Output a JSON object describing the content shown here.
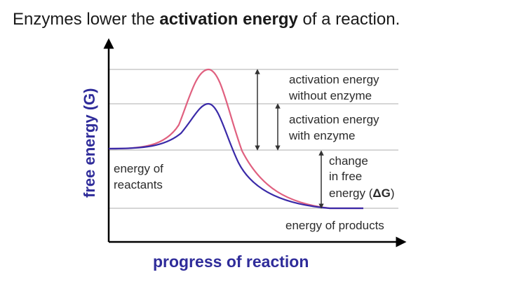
{
  "title": {
    "prefix": "Enzymes lower the ",
    "bold": "activation energy",
    "suffix": " of a reaction."
  },
  "diagram": {
    "y_axis_label": "free energy (G)",
    "x_axis_label": "progress of reaction",
    "reactants_label": [
      "energy of",
      "reactants"
    ],
    "products_label": "energy of products",
    "without_enzyme_label": [
      "activation energy",
      "without enzyme"
    ],
    "with_enzyme_label": [
      "activation energy",
      "with enzyme"
    ],
    "delta_g_label": [
      "change",
      "in free",
      "energy (",
      "ΔG",
      ")"
    ],
    "colors": {
      "axis_label": "#2f2c9a",
      "without_enzyme_curve": "#e0607f",
      "with_enzyme_curve": "#3a2aa8",
      "guide_lines": "#c8c8c8",
      "axes": "#000000"
    }
  }
}
